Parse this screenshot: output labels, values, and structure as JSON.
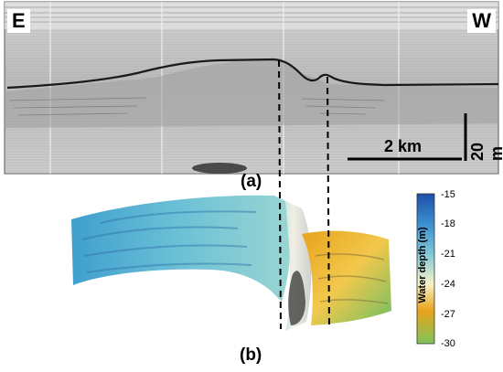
{
  "panel_a": {
    "label": "(a)",
    "left_direction": "E",
    "right_direction": "W",
    "horizontal_scale": "2 km",
    "vertical_scale": "20 m"
  },
  "panel_b": {
    "label": "(b)",
    "colorbar_title": "Water depth (m)",
    "colorbar_ticks": [
      "-15",
      "-18",
      "-21",
      "-24",
      "-27",
      "-30"
    ],
    "colorbar_colors": [
      "#1f4fa8",
      "#3a8fd0",
      "#7fc6d8",
      "#f7f2c8",
      "#e8a31c",
      "#7fc35a"
    ]
  }
}
